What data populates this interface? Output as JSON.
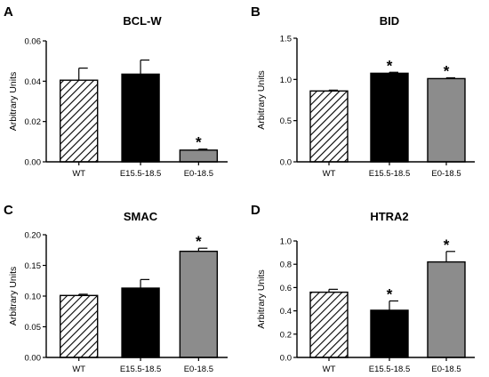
{
  "figure": {
    "panels": [
      "A",
      "B",
      "C",
      "D"
    ]
  },
  "colors": {
    "wt_fill": "#ffffff",
    "wt_hatch": "#000000",
    "e15_fill": "#000000",
    "e0_fill": "#8c8c8c",
    "axis": "#000000"
  },
  "chart_data": [
    {
      "type": "bar",
      "panel": "A",
      "title": "BCL-W",
      "ylabel": "Arbitrary Units",
      "xlabel": "",
      "categories": [
        "WT",
        "E15.5-18.5",
        "E0-18.5"
      ],
      "values": [
        0.0405,
        0.0435,
        0.0058
      ],
      "errors": [
        0.006,
        0.007,
        0.0005
      ],
      "significant": [
        false,
        false,
        true
      ],
      "annotations": [
        "",
        "",
        "*"
      ],
      "ylim": [
        0,
        0.06
      ],
      "yticks": [
        "0.00",
        "0.02",
        "0.04",
        "0.06"
      ],
      "fills": [
        "hatched",
        "black",
        "gray"
      ],
      "grid": false
    },
    {
      "type": "bar",
      "panel": "B",
      "title": "BID",
      "ylabel": "Arbitrary Units",
      "xlabel": "",
      "categories": [
        "WT",
        "E15.5-18.5",
        "E0-18.5"
      ],
      "values": [
        0.86,
        1.075,
        1.01
      ],
      "errors": [
        0.01,
        0.012,
        0.01
      ],
      "significant": [
        false,
        true,
        true
      ],
      "annotations": [
        "",
        "*",
        "*"
      ],
      "ylim": [
        0,
        1.5
      ],
      "yticks": [
        "0.0",
        "0.5",
        "1.0",
        "1.5"
      ],
      "fills": [
        "hatched",
        "black",
        "gray"
      ],
      "grid": false
    },
    {
      "type": "bar",
      "panel": "C",
      "title": "SMAC",
      "ylabel": "Arbitrary Units",
      "xlabel": "",
      "categories": [
        "WT",
        "E15.5-18.5",
        "E0-18.5"
      ],
      "values": [
        0.101,
        0.113,
        0.173
      ],
      "errors": [
        0.002,
        0.014,
        0.005
      ],
      "significant": [
        false,
        false,
        true
      ],
      "annotations": [
        "",
        "",
        "*"
      ],
      "ylim": [
        0,
        0.2
      ],
      "yticks": [
        "0.00",
        "0.05",
        "0.10",
        "0.15",
        "0.20"
      ],
      "fills": [
        "hatched",
        "black",
        "gray"
      ],
      "grid": false
    },
    {
      "type": "bar",
      "panel": "D",
      "title": "HTRA2",
      "ylabel": "Arbitrary Units",
      "xlabel": "",
      "categories": [
        "WT",
        "E15.5-18.5",
        "E0-18.5"
      ],
      "values": [
        0.56,
        0.405,
        0.82
      ],
      "errors": [
        0.025,
        0.08,
        0.09
      ],
      "significant": [
        false,
        true,
        true
      ],
      "annotations": [
        "",
        "*",
        "*"
      ],
      "ylim": [
        0,
        1.0
      ],
      "yticks": [
        "0.0",
        "0.2",
        "0.4",
        "0.6",
        "0.8",
        "1.0"
      ],
      "fills": [
        "hatched",
        "black",
        "gray"
      ],
      "grid": false
    }
  ]
}
